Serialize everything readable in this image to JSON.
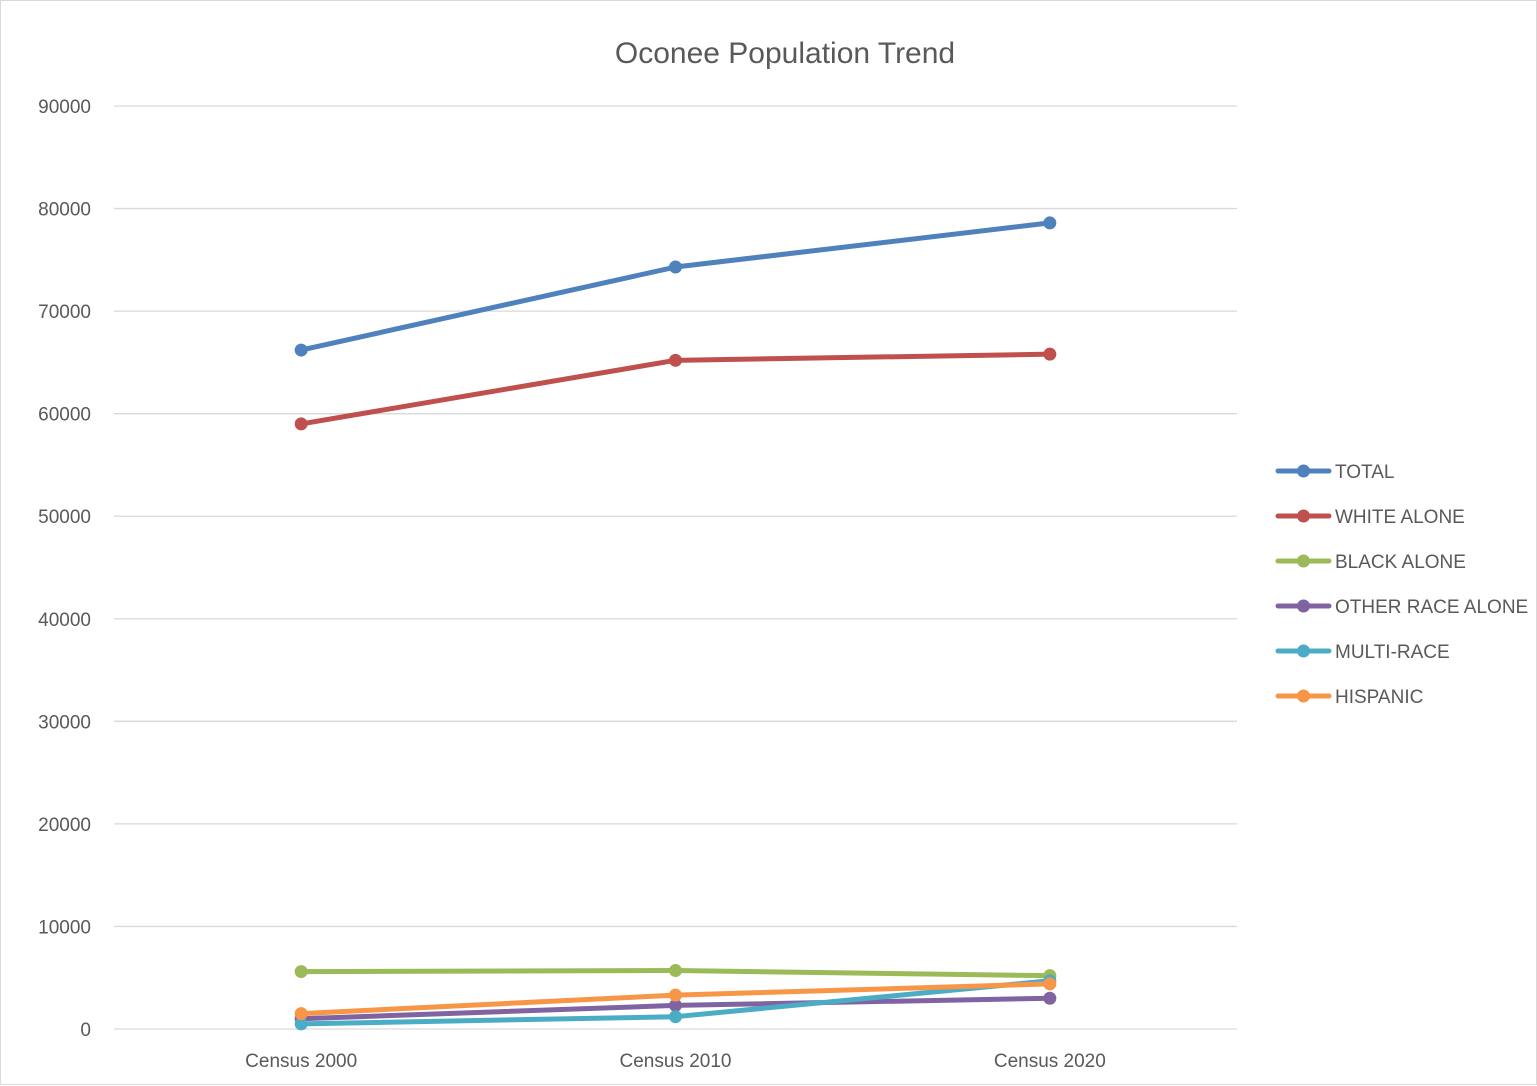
{
  "chart_data": {
    "type": "line",
    "title": "Oconee Population Trend",
    "xlabel": "",
    "ylabel": "",
    "categories": [
      "Census 2000",
      "Census 2010",
      "Census 2020"
    ],
    "ylim": [
      0,
      90000
    ],
    "yticks": [
      0,
      10000,
      20000,
      30000,
      40000,
      50000,
      60000,
      70000,
      80000,
      90000
    ],
    "grid": true,
    "legend_position": "right",
    "series": [
      {
        "name": "TOTAL",
        "color": "#4f81bd",
        "values": [
          66200,
          74300,
          78600
        ]
      },
      {
        "name": "WHITE ALONE",
        "color": "#c0504d",
        "values": [
          59000,
          65200,
          65800
        ]
      },
      {
        "name": "BLACK ALONE",
        "color": "#9bbb59",
        "values": [
          5600,
          5700,
          5200
        ]
      },
      {
        "name": "OTHER RACE ALONE",
        "color": "#8064a2",
        "values": [
          1000,
          2300,
          3000
        ]
      },
      {
        "name": "MULTI-RACE",
        "color": "#4bacc6",
        "values": [
          500,
          1200,
          4700
        ]
      },
      {
        "name": "HISPANIC",
        "color": "#f79646",
        "values": [
          1500,
          3300,
          4400
        ]
      }
    ]
  }
}
